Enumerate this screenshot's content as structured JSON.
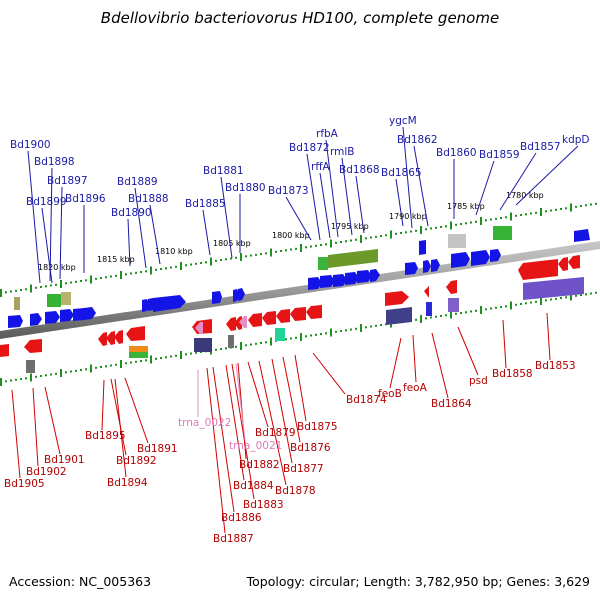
{
  "title": "Bdellovibrio bacteriovorus HD100, complete genome",
  "footer": {
    "accession": "Accession: NC_005363",
    "summary": "Topology: circular; Length: 3,782,950 bp; Genes: 3,629"
  },
  "colors": {
    "forward": "#1010ee",
    "reverse": "#ee1010",
    "trna": "#e88cc6",
    "backbone": "#8a8a8a",
    "tick": "#1f8f1f"
  },
  "ruler": {
    "top": [
      {
        "label": "1820 kbp",
        "kbp": 1820
      },
      {
        "label": "1815 kbp",
        "kbp": 1815
      },
      {
        "label": "1810 kbp",
        "kbp": 1810
      },
      {
        "label": "1805 kbp",
        "kbp": 1805
      },
      {
        "label": "1800 kbp",
        "kbp": 1800
      },
      {
        "label": "1795 kbp",
        "kbp": 1795
      },
      {
        "label": "1790 kbp",
        "kbp": 1790
      },
      {
        "label": "1785 kbp",
        "kbp": 1785
      },
      {
        "label": "1780 kbp",
        "kbp": 1780
      }
    ]
  },
  "forward_labels": [
    "Bd1900",
    "Bd1898",
    "Bd1897",
    "Bd1899",
    "Bd1896",
    "Bd1889",
    "Bd1890",
    "Bd1888",
    "Bd1881",
    "Bd1885",
    "Bd1880",
    "Bd1873",
    "Bd1872",
    "rfbA",
    "rffA",
    "rmlB",
    "Bd1868",
    "ygcM",
    "Bd1865",
    "Bd1862",
    "Bd1860",
    "Bd1859",
    "Bd1857",
    "kdpD"
  ],
  "reverse_labels": [
    "Bd1905",
    "Bd1902",
    "Bd1901",
    "Bd1895",
    "Bd1892",
    "Bd1894",
    "Bd1891",
    "Bd1887",
    "Bd1886",
    "Bd1884",
    "Bd1883",
    "Bd1882",
    "Bd1879",
    "Bd1878",
    "Bd1877",
    "Bd1876",
    "Bd1875",
    "Bd1874",
    "feoB",
    "feoA",
    "Bd1864",
    "psd",
    "Bd1858",
    "Bd1853"
  ],
  "trna_labels": [
    "trna_0022",
    "trna_0021"
  ]
}
